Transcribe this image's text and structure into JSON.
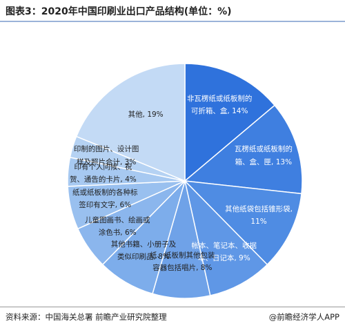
{
  "chart_data": {
    "type": "pie",
    "title": "图表3：2020年中国印刷业出口产品结构(单位：%)",
    "values": [
      14,
      13,
      11,
      9,
      8,
      8,
      6,
      6,
      4,
      3,
      19
    ],
    "value_labels": [
      "非瓦楞纸或纸板制的可折箱、盒, 14%",
      "瓦楞纸或纸板制的箱、盒、匣, 13%",
      "其他纸袋包括锥形袋, 11%",
      "帐本、笔记本、收据本、日记本, 9%",
      "纸、纸板制其他包装容器包括唱片, 8%",
      "其他书籍、小册子及类似印刷品, 8%",
      "儿童图画书、绘画或涂色书, 6%",
      "纸或纸板制的各种标签印有文字, 6%",
      "印有个人问候、祝贺、通告的卡片, 4%",
      "印制的图片、设计图样及照片合计, 3%",
      "其他, 19%"
    ],
    "colors": [
      "#2f72dc",
      "#3f7fe0",
      "#4f8ce3",
      "#5f97e6",
      "#6fa2e8",
      "#7dadeb",
      "#8bb6ed",
      "#99c0ef",
      "#a7c9f1",
      "#b5d2f3",
      "#c3daf5"
    ],
    "source": "资料来源：中国海关总署 前瞻产业研究院整理",
    "credit": "@前瞻经济学人APP"
  }
}
